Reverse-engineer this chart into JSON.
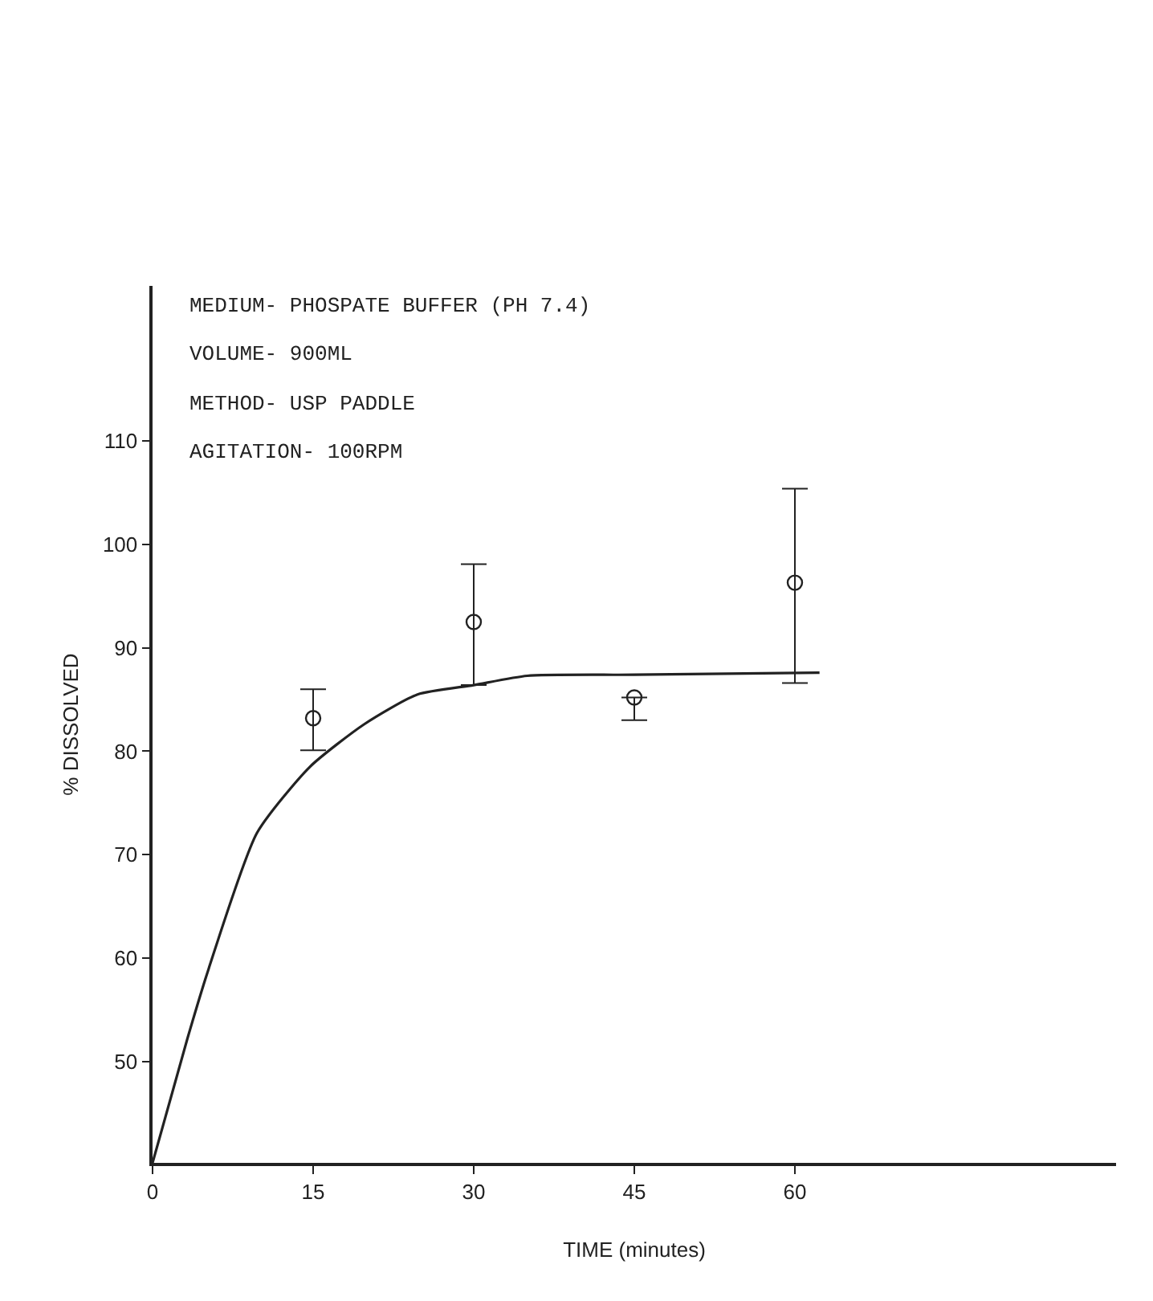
{
  "chart_data": {
    "type": "line",
    "xlabel": "TIME (minutes)",
    "ylabel": "% DISSOLVED",
    "annotations": [
      "MEDIUM- PHOSPATE BUFFER (PH 7.4)",
      "VOLUME- 900ML",
      "METHOD- USP PADDLE",
      "AGITATION- 100RPM"
    ],
    "series": [
      {
        "color": "#222222",
        "marker": "none",
        "line_style": "solid",
        "x": [
          0,
          3.25,
          5.25,
          9.75,
          14.7,
          19.75,
          24.75,
          30,
          35,
          45,
          62.3
        ],
        "values": [
          40.2,
          52.2,
          59.0,
          72.1,
          78.5,
          82.6,
          85.5,
          86.4,
          87.3,
          87.4,
          87.6
        ]
      },
      {
        "type": "scatter",
        "color": "#222222",
        "marker": "circle",
        "x": [
          15,
          30,
          45,
          60
        ],
        "values": [
          83.2,
          92.5,
          85.2,
          96.3
        ],
        "errors": [
          [
            80.1,
            86
          ],
          [
            86.4,
            98.1
          ],
          [
            83,
            85.2
          ],
          [
            86.6,
            105.4
          ]
        ]
      }
    ],
    "xlim": [
      0,
      90
    ],
    "xticks": [
      0,
      15,
      30,
      45,
      60
    ],
    "ylim": [
      40.2,
      125
    ],
    "yticks": [
      50,
      60,
      70,
      80,
      90,
      100,
      110
    ]
  }
}
